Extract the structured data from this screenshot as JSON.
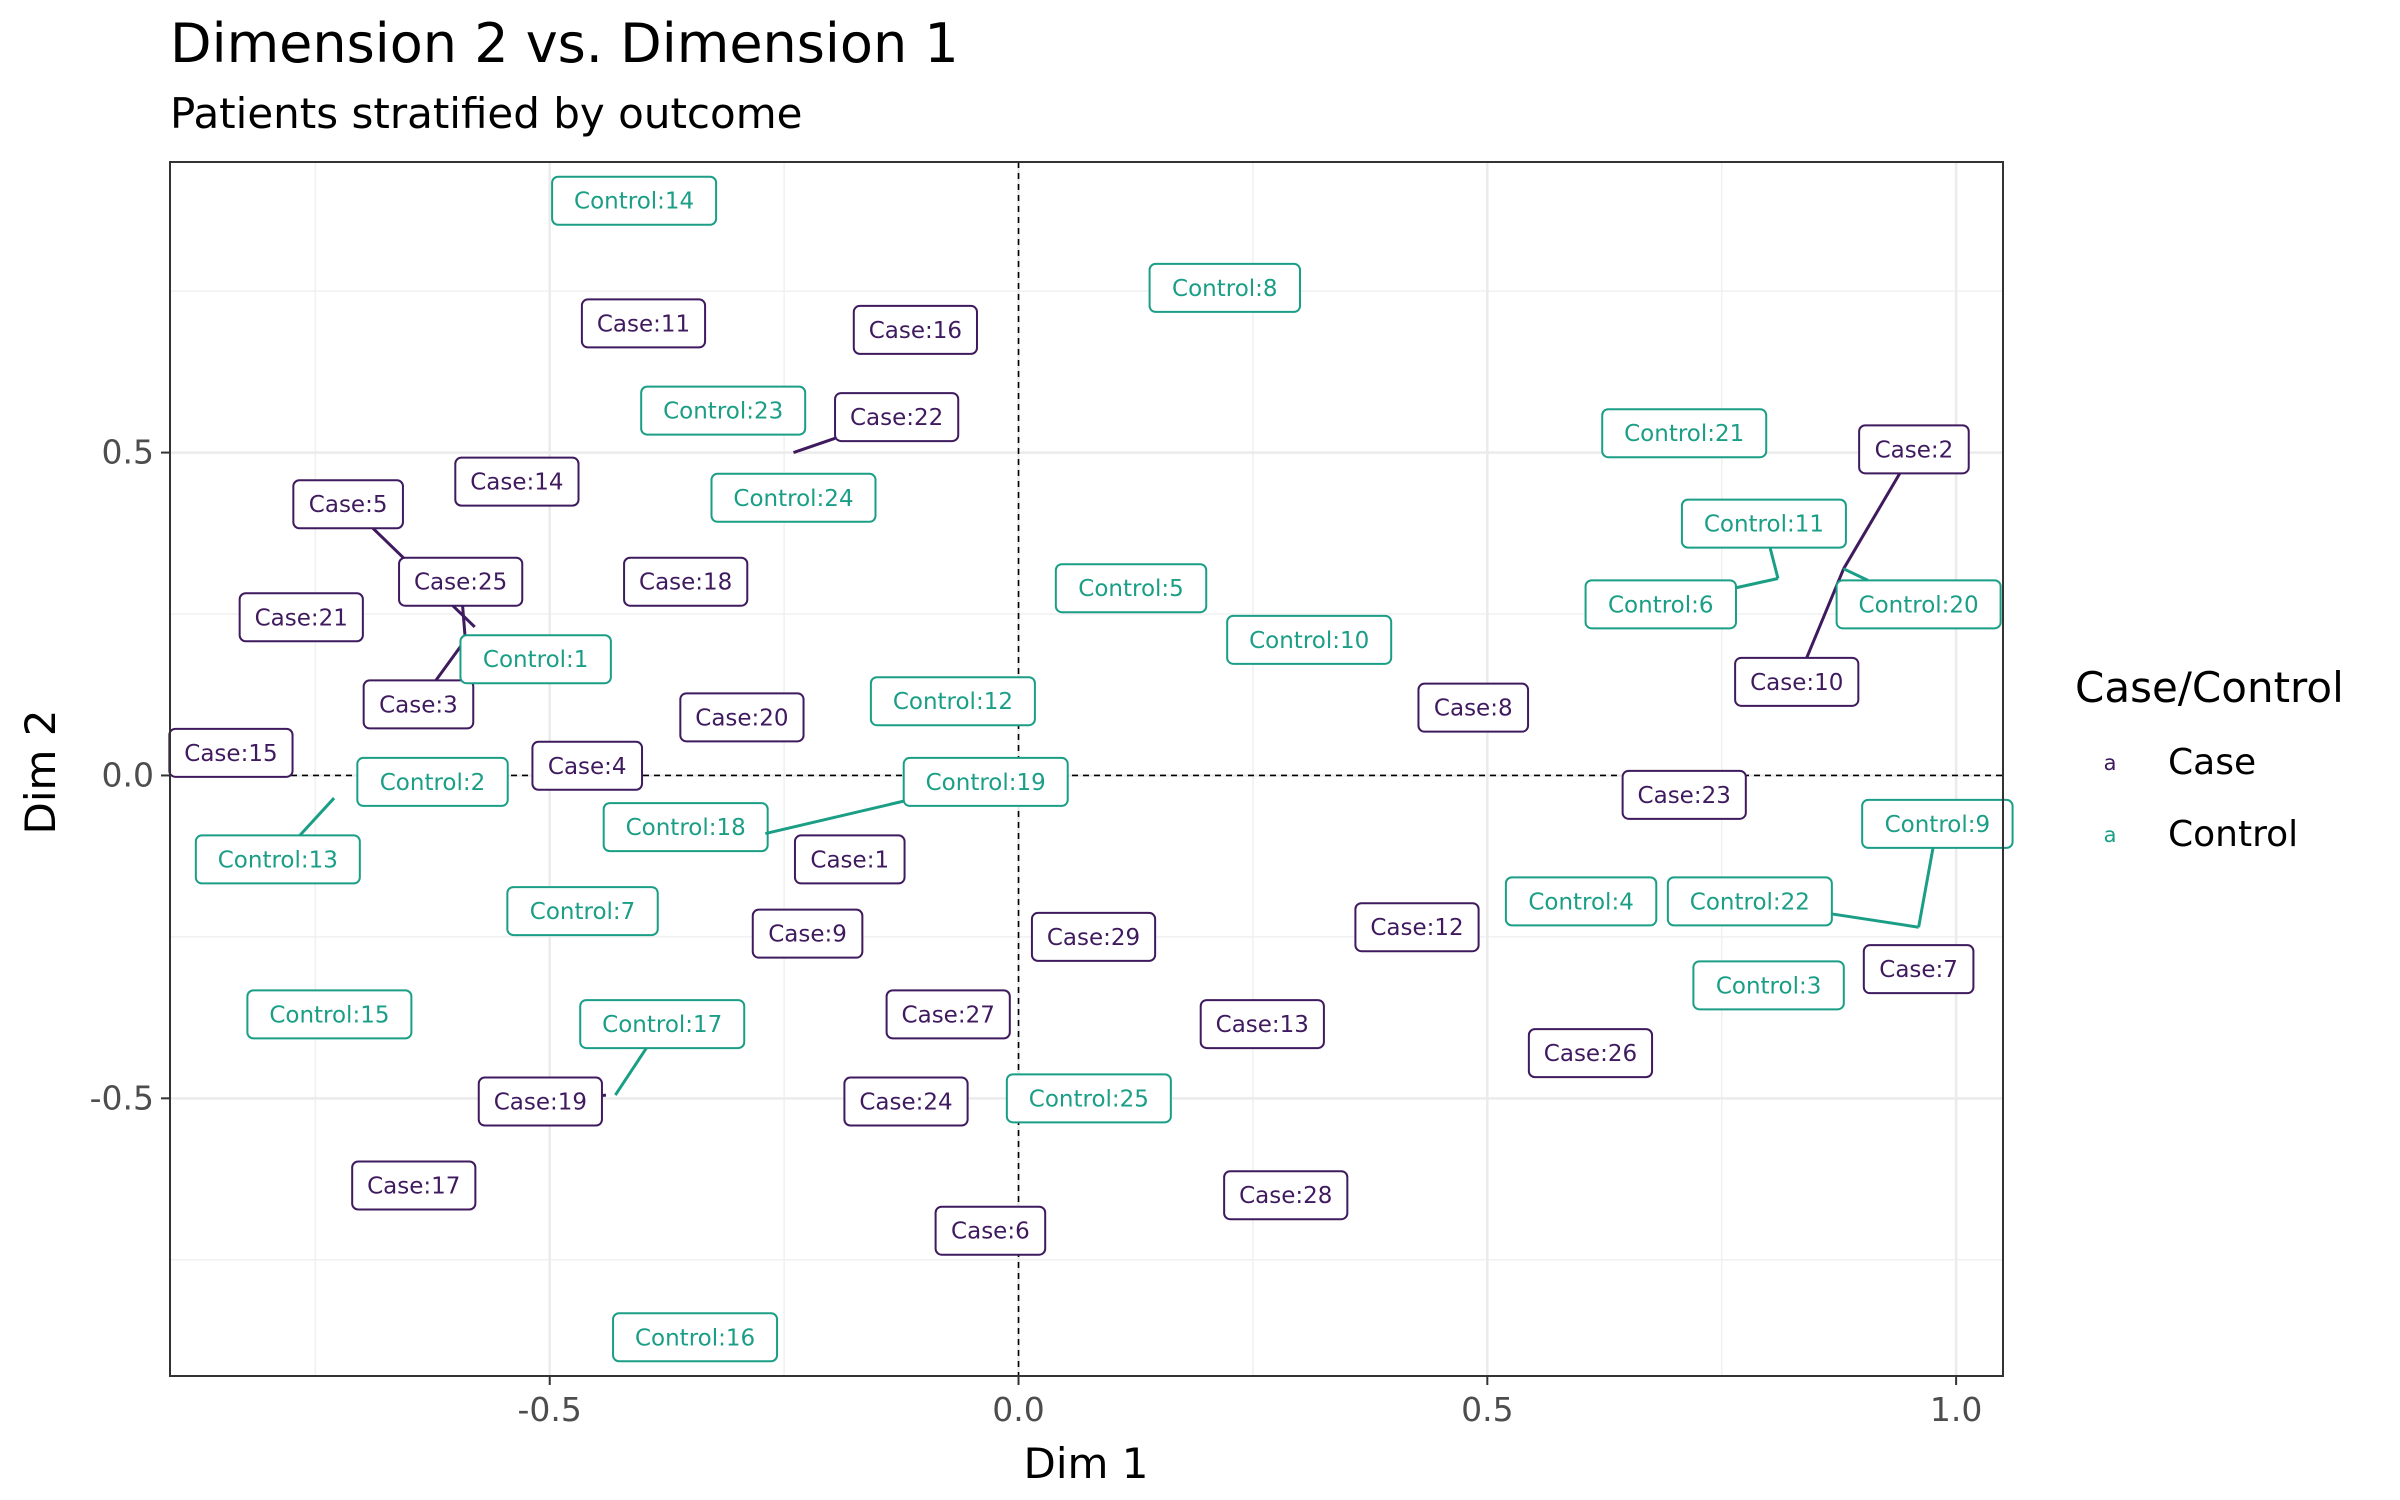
{
  "chart_data": {
    "type": "scatter",
    "title": "Dimension 2 vs. Dimension 1",
    "subtitle": "Patients stratified by outcome",
    "xlabel": "Dim 1",
    "ylabel": "Dim 2",
    "xlim": [
      -0.905,
      1.05
    ],
    "ylim": [
      -0.93,
      0.95
    ],
    "x_ticks": [
      -0.5,
      0.0,
      0.5,
      1.0
    ],
    "x_tick_labels": [
      "-0.5",
      "0.0",
      "0.5",
      "1.0"
    ],
    "y_ticks": [
      -0.5,
      0.0,
      0.5
    ],
    "y_tick_labels": [
      "-0.5",
      "0.0",
      "0.5"
    ],
    "grid": true,
    "reference_lines": [
      {
        "axis": "x",
        "value": 0
      },
      {
        "axis": "y",
        "value": 0
      }
    ],
    "legend": {
      "title": "Case/Control",
      "position": "right",
      "key_glyph": "a",
      "entries": [
        {
          "name": "Case",
          "color": "#3f1a5e"
        },
        {
          "name": "Control",
          "color": "#1b9e86"
        }
      ]
    },
    "series": [
      {
        "name": "Case",
        "color": "#3f1a5e",
        "points": [
          {
            "label": "Case:1",
            "x": -0.18,
            "y": -0.13
          },
          {
            "label": "Case:2",
            "x": 0.88,
            "y": 0.32,
            "lx": 0.955,
            "ly": 0.505
          },
          {
            "label": "Case:3",
            "x": -0.59,
            "y": 0.21,
            "lx": -0.64,
            "ly": 0.11
          },
          {
            "label": "Case:4",
            "x": -0.46,
            "y": 0.015
          },
          {
            "label": "Case:5",
            "x": -0.58,
            "y": 0.23,
            "lx": -0.715,
            "ly": 0.42
          },
          {
            "label": "Case:6",
            "x": -0.03,
            "y": -0.705
          },
          {
            "label": "Case:7",
            "x": 0.96,
            "y": -0.3
          },
          {
            "label": "Case:8",
            "x": 0.485,
            "y": 0.105
          },
          {
            "label": "Case:9",
            "x": -0.225,
            "y": -0.245
          },
          {
            "label": "Case:10",
            "x": 0.88,
            "y": 0.32,
            "lx": 0.83,
            "ly": 0.145
          },
          {
            "label": "Case:11",
            "x": -0.4,
            "y": 0.7
          },
          {
            "label": "Case:12",
            "x": 0.425,
            "y": -0.235
          },
          {
            "label": "Case:13",
            "x": 0.26,
            "y": -0.385
          },
          {
            "label": "Case:14",
            "x": -0.535,
            "y": 0.455
          },
          {
            "label": "Case:15",
            "x": -0.84,
            "y": 0.035
          },
          {
            "label": "Case:16",
            "x": -0.11,
            "y": 0.69
          },
          {
            "label": "Case:17",
            "x": -0.645,
            "y": -0.635
          },
          {
            "label": "Case:18",
            "x": -0.355,
            "y": 0.3
          },
          {
            "label": "Case:19",
            "x": -0.44,
            "y": -0.495,
            "lx": -0.51,
            "ly": -0.505
          },
          {
            "label": "Case:20",
            "x": -0.295,
            "y": 0.09
          },
          {
            "label": "Case:21",
            "x": -0.765,
            "y": 0.245
          },
          {
            "label": "Case:22",
            "x": -0.24,
            "y": 0.5,
            "lx": -0.13,
            "ly": 0.555
          },
          {
            "label": "Case:23",
            "x": 0.71,
            "y": -0.03
          },
          {
            "label": "Case:24",
            "x": -0.12,
            "y": -0.505
          },
          {
            "label": "Case:25",
            "x": -0.59,
            "y": 0.21,
            "lx": -0.595,
            "ly": 0.3
          },
          {
            "label": "Case:26",
            "x": 0.61,
            "y": -0.43
          },
          {
            "label": "Case:27",
            "x": -0.075,
            "y": -0.37
          },
          {
            "label": "Case:28",
            "x": 0.285,
            "y": -0.65
          },
          {
            "label": "Case:29",
            "x": 0.08,
            "y": -0.25
          }
        ]
      },
      {
        "name": "Control",
        "color": "#1b9e86",
        "points": [
          {
            "label": "Control:1",
            "x": -0.59,
            "y": 0.21,
            "lx": -0.515,
            "ly": 0.18
          },
          {
            "label": "Control:2",
            "x": -0.625,
            "y": -0.01
          },
          {
            "label": "Control:3",
            "x": 0.8,
            "y": -0.325
          },
          {
            "label": "Control:4",
            "x": 0.6,
            "y": -0.195
          },
          {
            "label": "Control:5",
            "x": 0.12,
            "y": 0.29
          },
          {
            "label": "Control:6",
            "x": 0.81,
            "y": 0.305,
            "lx": 0.685,
            "ly": 0.265
          },
          {
            "label": "Control:7",
            "x": -0.465,
            "y": -0.21
          },
          {
            "label": "Control:8",
            "x": 0.22,
            "y": 0.755
          },
          {
            "label": "Control:9",
            "x": 0.96,
            "y": -0.235,
            "lx": 0.98,
            "ly": -0.075
          },
          {
            "label": "Control:10",
            "x": 0.31,
            "y": 0.21
          },
          {
            "label": "Control:11",
            "x": 0.81,
            "y": 0.305,
            "lx": 0.795,
            "ly": 0.39
          },
          {
            "label": "Control:12",
            "x": -0.07,
            "y": 0.115
          },
          {
            "label": "Control:13",
            "x": -0.73,
            "y": -0.035,
            "lx": -0.79,
            "ly": -0.13
          },
          {
            "label": "Control:14",
            "x": -0.41,
            "y": 0.89
          },
          {
            "label": "Control:15",
            "x": -0.735,
            "y": -0.37
          },
          {
            "label": "Control:16",
            "x": -0.345,
            "y": -0.87
          },
          {
            "label": "Control:17",
            "x": -0.43,
            "y": -0.495,
            "lx": -0.38,
            "ly": -0.385
          },
          {
            "label": "Control:18",
            "x": -0.27,
            "y": -0.09,
            "lx": -0.355,
            "ly": -0.08
          },
          {
            "label": "Control:19",
            "x": -0.27,
            "y": -0.09,
            "lx": -0.035,
            "ly": -0.01
          },
          {
            "label": "Control:20",
            "x": 0.88,
            "y": 0.32,
            "lx": 0.96,
            "ly": 0.265
          },
          {
            "label": "Control:21",
            "x": 0.71,
            "y": 0.53
          },
          {
            "label": "Control:22",
            "x": 0.96,
            "y": -0.235,
            "lx": 0.78,
            "ly": -0.195
          },
          {
            "label": "Control:23",
            "x": -0.315,
            "y": 0.565
          },
          {
            "label": "Control:24",
            "x": -0.24,
            "y": 0.43
          },
          {
            "label": "Control:25",
            "x": 0.075,
            "y": -0.5
          }
        ]
      }
    ]
  }
}
